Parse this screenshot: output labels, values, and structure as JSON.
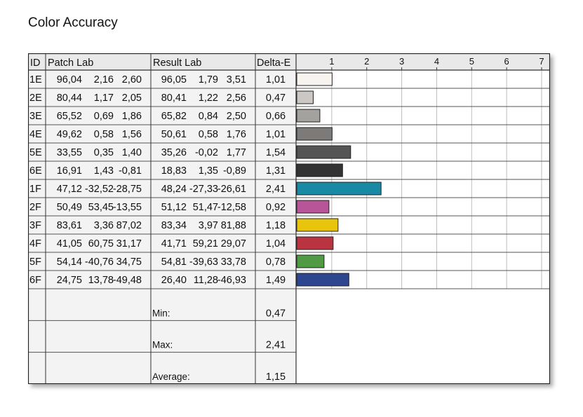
{
  "title": "Color Accuracy",
  "headers": {
    "id": "ID",
    "patch": "Patch Lab",
    "result": "Result Lab",
    "delta": "Delta-E"
  },
  "rows": [
    {
      "id": "1E",
      "patch": [
        "96,04",
        "2,16",
        "2,60"
      ],
      "result": [
        "96,05",
        "1,79",
        "3,51"
      ],
      "delta": "1,01",
      "color": "#f7f3ee"
    },
    {
      "id": "2E",
      "patch": [
        "80,44",
        "1,17",
        "2,05"
      ],
      "result": [
        "80,41",
        "1,22",
        "2,56"
      ],
      "delta": "0,47",
      "color": "#cbc8c4"
    },
    {
      "id": "3E",
      "patch": [
        "65,52",
        "0,69",
        "1,86"
      ],
      "result": [
        "65,82",
        "0,84",
        "2,50"
      ],
      "delta": "0,66",
      "color": "#a4a29e"
    },
    {
      "id": "4E",
      "patch": [
        "49,62",
        "0,58",
        "1,56"
      ],
      "result": [
        "50,61",
        "0,58",
        "1,76"
      ],
      "delta": "1,01",
      "color": "#7c7b79"
    },
    {
      "id": "5E",
      "patch": [
        "33,55",
        "0,35",
        "1,40"
      ],
      "result": [
        "35,26",
        "-0,02",
        "1,77"
      ],
      "delta": "1,54",
      "color": "#555555"
    },
    {
      "id": "6E",
      "patch": [
        "16,91",
        "1,43",
        "-0,81"
      ],
      "result": [
        "18,83",
        "1,35",
        "-0,89"
      ],
      "delta": "1,31",
      "color": "#333333"
    },
    {
      "id": "1F",
      "patch": [
        "47,12",
        "-32,52",
        "-28,75"
      ],
      "result": [
        "48,24",
        "-27,33",
        "-26,61"
      ],
      "delta": "2,41",
      "color": "#1a8aa4"
    },
    {
      "id": "2F",
      "patch": [
        "50,49",
        "53,45",
        "-13,55"
      ],
      "result": [
        "51,12",
        "51,47",
        "-12,58"
      ],
      "delta": "0,92",
      "color": "#b85598"
    },
    {
      "id": "3F",
      "patch": [
        "83,61",
        "3,36",
        "87,02"
      ],
      "result": [
        "83,34",
        "3,97",
        "81,88"
      ],
      "delta": "1,18",
      "color": "#e8c40c"
    },
    {
      "id": "4F",
      "patch": [
        "41,05",
        "60,75",
        "31,17"
      ],
      "result": [
        "41,71",
        "59,21",
        "29,07"
      ],
      "delta": "1,04",
      "color": "#b93340"
    },
    {
      "id": "5F",
      "patch": [
        "54,14",
        "-40,76",
        "34,75"
      ],
      "result": [
        "54,81",
        "-39,63",
        "33,78"
      ],
      "delta": "0,78",
      "color": "#4f9a43"
    },
    {
      "id": "6F",
      "patch": [
        "24,75",
        "13,78",
        "-49,48"
      ],
      "result": [
        "26,40",
        "11,28",
        "-46,93"
      ],
      "delta": "1,49",
      "color": "#2e4690"
    }
  ],
  "summary": [
    {
      "label": "Min:",
      "value": "0,47"
    },
    {
      "label": "Max:",
      "value": "2,41"
    },
    {
      "label": "Average:",
      "value": "1,15"
    }
  ],
  "chart_data": {
    "type": "bar",
    "orientation": "horizontal",
    "categories": [
      "1E",
      "2E",
      "3E",
      "4E",
      "5E",
      "6E",
      "1F",
      "2F",
      "3F",
      "4F",
      "5F",
      "6F"
    ],
    "values": [
      1.01,
      0.47,
      0.66,
      1.01,
      1.54,
      1.31,
      2.41,
      0.92,
      1.18,
      1.04,
      0.78,
      1.49
    ],
    "x_ticks": [
      "1",
      "2",
      "3",
      "4",
      "5",
      "6",
      "7"
    ],
    "xlim": [
      0,
      7.2
    ],
    "grid": true
  }
}
